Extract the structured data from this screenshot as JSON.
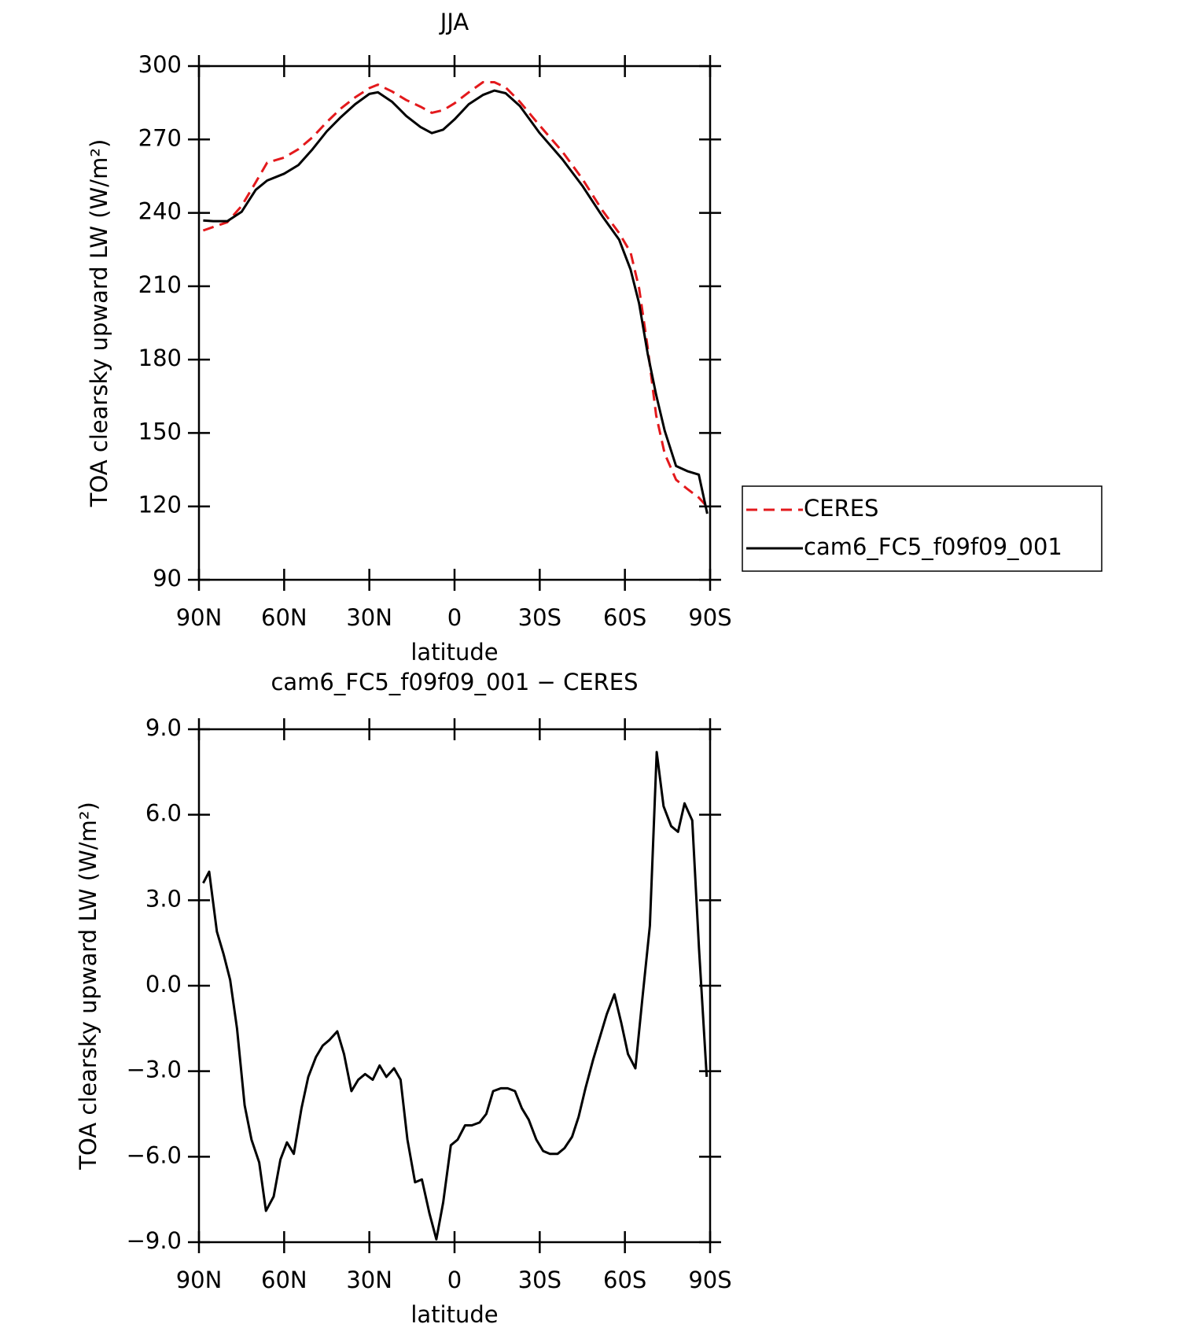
{
  "chart_data": [
    {
      "type": "line",
      "title": "JJA",
      "xlabel": "latitude",
      "ylabel": "TOA clearsky upward LW (W/m²)",
      "xlim": [
        90,
        -90
      ],
      "ylim": [
        90,
        300
      ],
      "xticks": [
        {
          "value": 90,
          "label": "90N"
        },
        {
          "value": 60,
          "label": "60N"
        },
        {
          "value": 30,
          "label": "30N"
        },
        0,
        {
          "value": -30,
          "label": "30S"
        },
        {
          "value": -60,
          "label": "60S"
        },
        {
          "value": -90,
          "label": "90S"
        }
      ],
      "yticks": [
        90,
        120,
        150,
        180,
        210,
        240,
        270,
        300
      ],
      "legend": "outside right",
      "x": [
        88.5,
        85,
        80,
        75,
        70,
        66,
        60,
        55,
        50,
        45,
        40,
        35,
        30,
        27,
        22,
        17,
        12,
        8,
        4,
        0,
        -5,
        -10,
        -14,
        -18,
        -23,
        -30,
        -38,
        -45,
        -52,
        -58,
        -62,
        -65,
        -68,
        -71,
        -74,
        -78,
        -82,
        -86,
        -89
      ],
      "series": [
        {
          "name": "CERES",
          "color": "#e3191c",
          "line_style": "dashed",
          "values": [
            232.8,
            234.2,
            236.2,
            242.8,
            252.5,
            260.5,
            262.6,
            266.0,
            270.9,
            277.1,
            282.7,
            287.2,
            291.0,
            292.4,
            289.6,
            286.1,
            283.4,
            280.9,
            282.0,
            284.8,
            289.3,
            293.4,
            293.4,
            291.3,
            285.4,
            275.7,
            265.0,
            253.9,
            241.1,
            231.7,
            223.8,
            209.2,
            185.0,
            157.2,
            141.6,
            130.9,
            127.1,
            123.6,
            119.8
          ]
        },
        {
          "name": "cam6_FC5_f09f09_001",
          "color": "#000000",
          "line_style": "solid",
          "values": [
            236.9,
            236.6,
            236.6,
            240.4,
            249.4,
            253.2,
            256.0,
            259.5,
            266.0,
            273.3,
            279.2,
            284.4,
            288.6,
            289.3,
            285.4,
            279.6,
            275.1,
            272.6,
            274.0,
            278.2,
            284.4,
            288.2,
            290.0,
            288.9,
            283.7,
            272.6,
            261.9,
            251.1,
            238.7,
            229.0,
            216.8,
            203.0,
            182.5,
            165.6,
            151.0,
            136.5,
            134.4,
            133.0,
            117.0
          ]
        }
      ]
    },
    {
      "type": "line",
      "title": "cam6_FC5_f09f09_001 − CERES",
      "xlabel": "latitude",
      "ylabel": "TOA clearsky upward LW (W/m²)",
      "xlim": [
        90,
        -90
      ],
      "ylim": [
        -9,
        9
      ],
      "xticks": [
        {
          "value": 90,
          "label": "90N"
        },
        {
          "value": 60,
          "label": "60N"
        },
        {
          "value": 30,
          "label": "30N"
        },
        0,
        {
          "value": -30,
          "label": "30S"
        },
        {
          "value": -60,
          "label": "60S"
        },
        {
          "value": -90,
          "label": "90S"
        }
      ],
      "yticks": [
        {
          "value": -9,
          "label": "−9.0"
        },
        {
          "value": -6,
          "label": "−6.0"
        },
        {
          "value": -3,
          "label": "−3.0"
        },
        {
          "value": 0,
          "label": "0.0"
        },
        {
          "value": 3,
          "label": "3.0"
        },
        {
          "value": 6,
          "label": "6.0"
        },
        {
          "value": 9,
          "label": "9.0"
        }
      ],
      "x": [
        88.5,
        86.4,
        83.7,
        81.3,
        79.0,
        76.6,
        73.9,
        71.5,
        68.8,
        66.4,
        63.7,
        61.3,
        59.0,
        56.6,
        53.9,
        51.5,
        48.8,
        46.4,
        44.0,
        41.3,
        38.9,
        36.3,
        33.9,
        31.5,
        28.8,
        26.4,
        24.0,
        21.3,
        19.0,
        16.6,
        13.9,
        11.5,
        8.8,
        6.4,
        4.0,
        1.3,
        -1.1,
        -3.7,
        -6.1,
        -8.8,
        -11.2,
        -13.6,
        -16.3,
        -18.7,
        -21.3,
        -23.7,
        -26.1,
        -28.8,
        -31.2,
        -33.6,
        -36.3,
        -38.7,
        -41.4,
        -43.7,
        -46.1,
        -48.8,
        -51.2,
        -53.6,
        -56.3,
        -58.7,
        -61.1,
        -63.7,
        -66.1,
        -68.8,
        -71.2,
        -73.6,
        -76.3,
        -78.7,
        -81.0,
        -83.7,
        -86.1,
        -88.8
      ],
      "series": [
        {
          "name": "cam6_FC5_f09f09_001 − CERES",
          "color": "#000000",
          "line_style": "solid",
          "values": [
            3.6,
            4.0,
            1.9,
            1.1,
            0.2,
            -1.5,
            -4.2,
            -5.4,
            -6.2,
            -7.9,
            -7.4,
            -6.1,
            -5.5,
            -5.9,
            -4.3,
            -3.2,
            -2.5,
            -2.1,
            -1.9,
            -1.6,
            -2.4,
            -3.7,
            -3.3,
            -3.1,
            -3.3,
            -2.8,
            -3.2,
            -2.9,
            -3.3,
            -5.4,
            -6.9,
            -6.8,
            -8.0,
            -8.9,
            -7.6,
            -5.6,
            -5.4,
            -4.9,
            -4.9,
            -4.8,
            -4.5,
            -3.7,
            -3.6,
            -3.6,
            -3.7,
            -4.3,
            -4.7,
            -5.4,
            -5.8,
            -5.9,
            -5.9,
            -5.7,
            -5.3,
            -4.6,
            -3.6,
            -2.6,
            -1.8,
            -1.0,
            -0.3,
            -1.3,
            -2.4,
            -2.9,
            -0.5,
            2.1,
            8.2,
            6.3,
            5.6,
            5.4,
            6.4,
            5.8,
            1.3,
            -3.2
          ]
        }
      ]
    }
  ]
}
